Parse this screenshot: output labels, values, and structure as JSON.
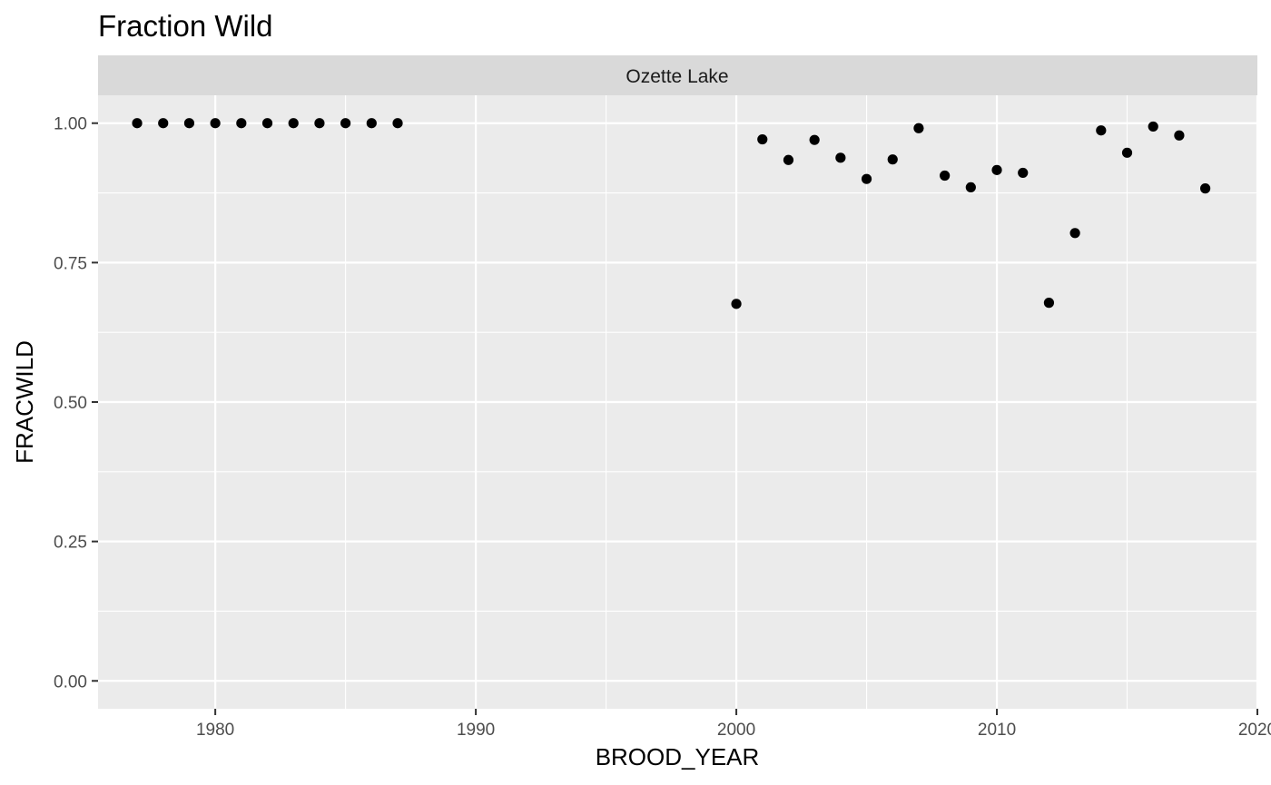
{
  "chart_data": {
    "type": "scatter",
    "title": "Fraction Wild",
    "facet_label": "Ozette Lake",
    "xlabel": "BROOD_YEAR",
    "ylabel": "FRACWILD",
    "xlim": [
      1975.5,
      2020
    ],
    "ylim": [
      -0.05,
      1.05
    ],
    "x_ticks": [
      1980,
      1990,
      2000,
      2010,
      2020
    ],
    "x_tick_labels": [
      "1980",
      "1990",
      "2000",
      "2010",
      "2020"
    ],
    "y_ticks": [
      0,
      0.25,
      0.5,
      0.75,
      1
    ],
    "y_tick_labels": [
      "0.00",
      "0.25",
      "0.50",
      "0.75",
      "1.00"
    ],
    "grid": true,
    "points": [
      {
        "x": 1977,
        "y": 1.0
      },
      {
        "x": 1978,
        "y": 1.0
      },
      {
        "x": 1979,
        "y": 1.0
      },
      {
        "x": 1980,
        "y": 1.0
      },
      {
        "x": 1981,
        "y": 1.0
      },
      {
        "x": 1982,
        "y": 1.0
      },
      {
        "x": 1983,
        "y": 1.0
      },
      {
        "x": 1984,
        "y": 1.0
      },
      {
        "x": 1985,
        "y": 1.0
      },
      {
        "x": 1986,
        "y": 1.0
      },
      {
        "x": 1987,
        "y": 1.0
      },
      {
        "x": 2000,
        "y": 0.676
      },
      {
        "x": 2001,
        "y": 0.971
      },
      {
        "x": 2002,
        "y": 0.934
      },
      {
        "x": 2003,
        "y": 0.97
      },
      {
        "x": 2004,
        "y": 0.938
      },
      {
        "x": 2005,
        "y": 0.9
      },
      {
        "x": 2006,
        "y": 0.935
      },
      {
        "x": 2007,
        "y": 0.991
      },
      {
        "x": 2008,
        "y": 0.906
      },
      {
        "x": 2009,
        "y": 0.885
      },
      {
        "x": 2010,
        "y": 0.916
      },
      {
        "x": 2011,
        "y": 0.911
      },
      {
        "x": 2012,
        "y": 0.678
      },
      {
        "x": 2013,
        "y": 0.803
      },
      {
        "x": 2014,
        "y": 0.987
      },
      {
        "x": 2015,
        "y": 0.947
      },
      {
        "x": 2016,
        "y": 0.994
      },
      {
        "x": 2017,
        "y": 0.978
      },
      {
        "x": 2018,
        "y": 0.883
      }
    ]
  },
  "colors": {
    "panel_background": "#ebebeb",
    "strip_background": "#d9d9d9",
    "grid": "#ffffff",
    "point": "#000000"
  }
}
